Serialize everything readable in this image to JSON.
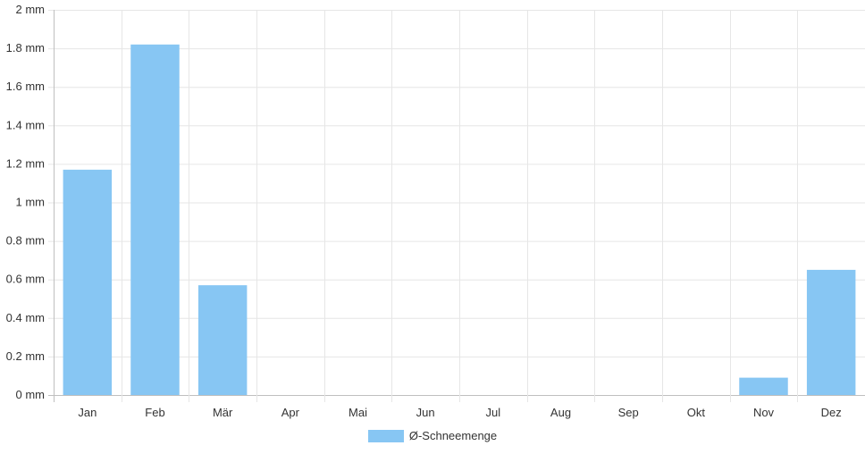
{
  "chart_data": {
    "type": "bar",
    "categories": [
      "Jan",
      "Feb",
      "Mär",
      "Apr",
      "Mai",
      "Jun",
      "Jul",
      "Aug",
      "Sep",
      "Okt",
      "Nov",
      "Dez"
    ],
    "series": [
      {
        "name": "Ø-Schneemenge",
        "values": [
          1.17,
          1.82,
          0.57,
          0,
          0,
          0,
          0,
          0,
          0,
          0,
          0.09,
          0.65
        ]
      }
    ],
    "ylim": [
      0,
      2
    ],
    "yticks": [
      0,
      0.2,
      0.4,
      0.6,
      0.8,
      1,
      1.2,
      1.4,
      1.6,
      1.8,
      2
    ],
    "ytick_labels": [
      "0 mm",
      "0.2 mm",
      "0.4 mm",
      "0.6 mm",
      "0.8 mm",
      "1 mm",
      "1.2 mm",
      "1.4 mm",
      "1.6 mm",
      "1.8 mm",
      "2 mm"
    ],
    "grid": true,
    "legend_position": "bottom"
  },
  "colors": {
    "bar": "#87c6f3",
    "grid": "#e6e6e6",
    "axis": "#bfbfbf",
    "text": "#333333"
  },
  "legend": {
    "label": "Ø-Schneemenge"
  }
}
